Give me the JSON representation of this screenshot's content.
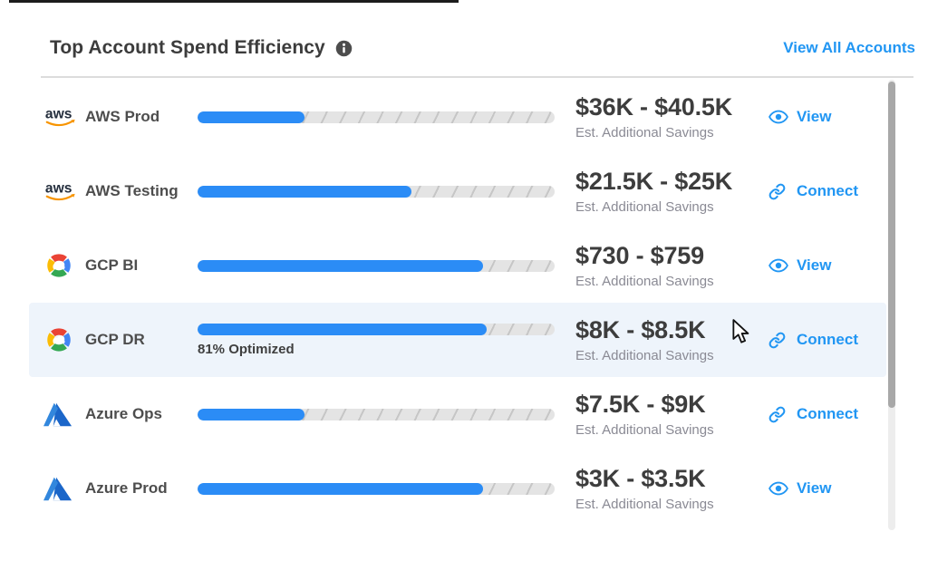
{
  "header": {
    "title": "Top Account Spend Efficiency",
    "view_all_label": "View All Accounts"
  },
  "labels": {
    "savings_caption": "Est. Additional Savings"
  },
  "accounts": [
    {
      "provider": "aws",
      "name": "AWS Prod",
      "optimized_pct": 30,
      "optimized_label": "",
      "savings_range": "$36K - $40.5K",
      "action": "View",
      "highlighted": false
    },
    {
      "provider": "aws",
      "name": "AWS Testing",
      "optimized_pct": 60,
      "optimized_label": "",
      "savings_range": "$21.5K - $25K",
      "action": "Connect",
      "highlighted": false
    },
    {
      "provider": "gcp",
      "name": "GCP BI",
      "optimized_pct": 80,
      "optimized_label": "",
      "savings_range": "$730 - $759",
      "action": "View",
      "highlighted": false
    },
    {
      "provider": "gcp",
      "name": "GCP DR",
      "optimized_pct": 81,
      "optimized_label": "81% Optimized",
      "savings_range": "$8K - $8.5K",
      "action": "Connect",
      "highlighted": true
    },
    {
      "provider": "azure",
      "name": "Azure Ops",
      "optimized_pct": 30,
      "optimized_label": "",
      "savings_range": "$7.5K - $9K",
      "action": "Connect",
      "highlighted": false
    },
    {
      "provider": "azure",
      "name": "Azure Prod",
      "optimized_pct": 80,
      "optimized_label": "",
      "savings_range": "$3K - $3.5K",
      "action": "View",
      "highlighted": false
    }
  ],
  "colors": {
    "accent": "#2196F3",
    "bar_fill": "#2B8CF6",
    "row_highlight": "#EEF4FB",
    "title_text": "#3C3C3C",
    "amount_text": "#3D3D3D",
    "muted_text": "#8A8A94"
  }
}
